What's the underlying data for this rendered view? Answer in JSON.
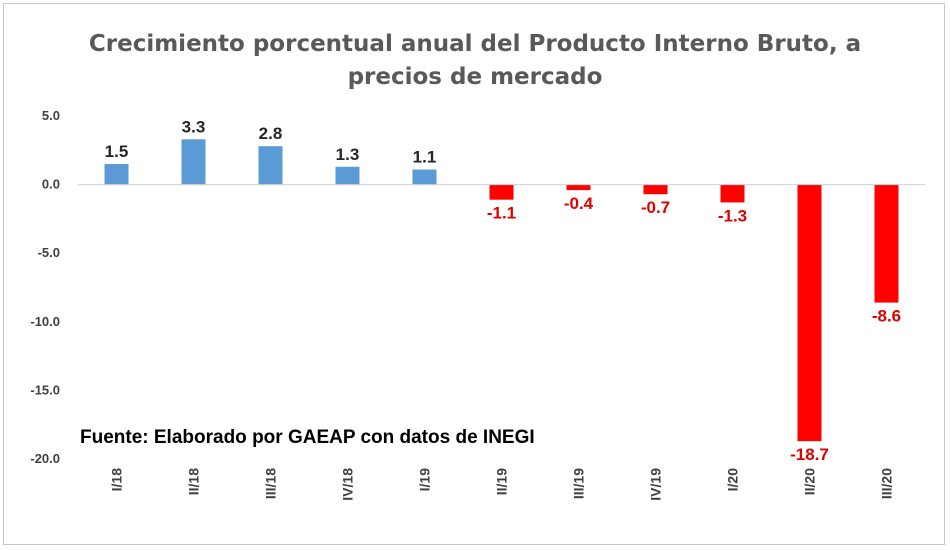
{
  "chart_data": {
    "type": "bar",
    "title": "Crecimiento porcentual anual del Producto Interno Bruto, a\nprecios de mercado",
    "categories": [
      "I/18",
      "II/18",
      "III/18",
      "IV/18",
      "I/19",
      "II/19",
      "III/19",
      "IV/19",
      "I/20",
      "II/20",
      "III/20"
    ],
    "values": [
      1.5,
      3.3,
      2.8,
      1.3,
      1.1,
      -1.1,
      -0.4,
      -0.7,
      -1.3,
      -18.7,
      -8.6
    ],
    "data_labels": [
      "1.5",
      "3.3",
      "2.8",
      "1.3",
      "1.1",
      "-1.1",
      "-0.4",
      "-0.7",
      "-1.3",
      "-18.7",
      "-8.6"
    ],
    "y_ticks": [
      5.0,
      0.0,
      -5.0,
      -10.0,
      -15.0,
      -20.0
    ],
    "y_tick_labels": [
      "5.0",
      "0.0",
      "-5.0",
      "-10.0",
      "-15.0",
      "-20.0"
    ],
    "ylim": [
      -20,
      5
    ],
    "grid": false,
    "colors": {
      "positive": "#5b9bd5",
      "negative": "#ff0000",
      "positive_label": "#262626",
      "negative_label": "#e00000"
    }
  },
  "source_note": "Fuente: Elaborado por GAEAP con datos de INEGI"
}
